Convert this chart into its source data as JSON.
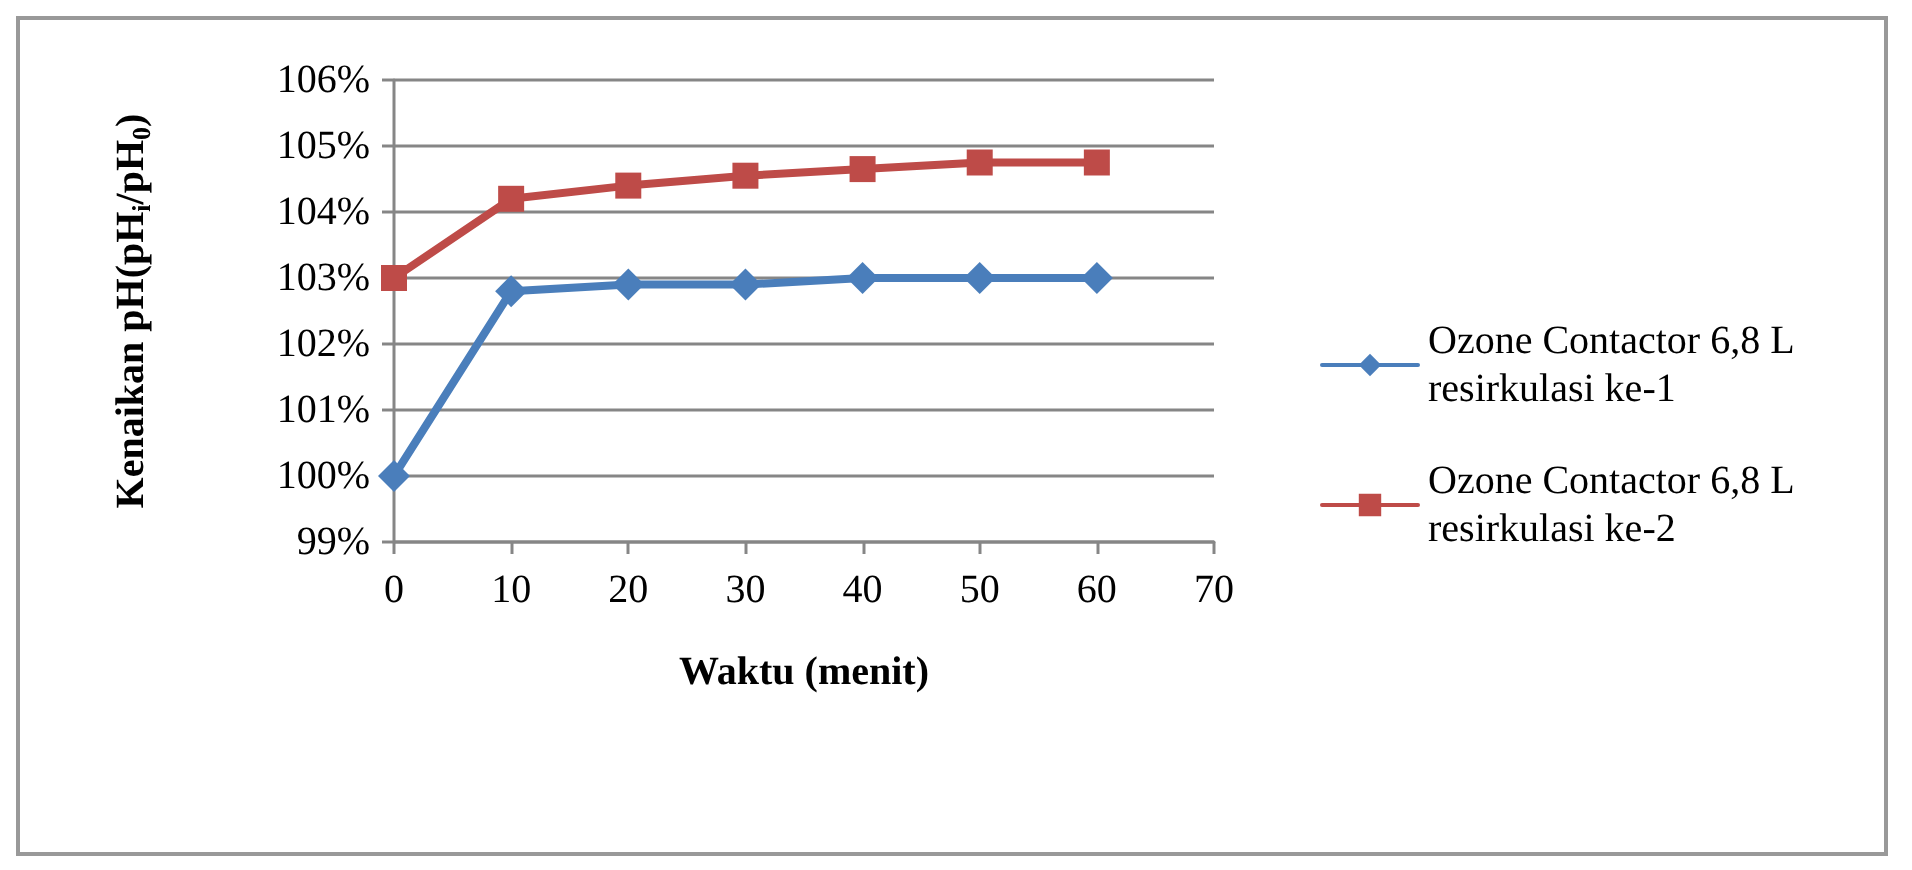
{
  "chart_data": {
    "type": "line",
    "xlabel": "Waktu (menit)",
    "ylabel": "Kenaikan pH(pH$_{i}$/pH$_{0}$)",
    "x": [
      0,
      10,
      20,
      30,
      40,
      50,
      60
    ],
    "series": [
      {
        "name": "Ozone Contactor 6,8 L resirkulasi ke-1",
        "color": "#4a7ebb",
        "marker": "diamond",
        "values": [
          100,
          102.8,
          102.9,
          102.9,
          103.0,
          103.0,
          103.0
        ]
      },
      {
        "name": "Ozone Contactor 6,8 L resirkulasi ke-2",
        "color": "#be4b48",
        "marker": "square",
        "values": [
          103.0,
          104.2,
          104.4,
          104.55,
          104.65,
          104.75,
          104.75
        ]
      }
    ],
    "xlim": [
      0,
      70
    ],
    "xticks": [
      0,
      10,
      20,
      30,
      40,
      50,
      60,
      70
    ],
    "ylim": [
      99,
      106
    ],
    "yticks": [
      {
        "value": 99,
        "label": "99%"
      },
      {
        "value": 100,
        "label": "100%"
      },
      {
        "value": 101,
        "label": "101%"
      },
      {
        "value": 102,
        "label": "102%"
      },
      {
        "value": 103,
        "label": "103%"
      },
      {
        "value": 104,
        "label": "104%"
      },
      {
        "value": 105,
        "label": "105%"
      },
      {
        "value": 106,
        "label": "106%"
      }
    ],
    "grid": "y",
    "legend": "right",
    "line_style": "solid"
  }
}
